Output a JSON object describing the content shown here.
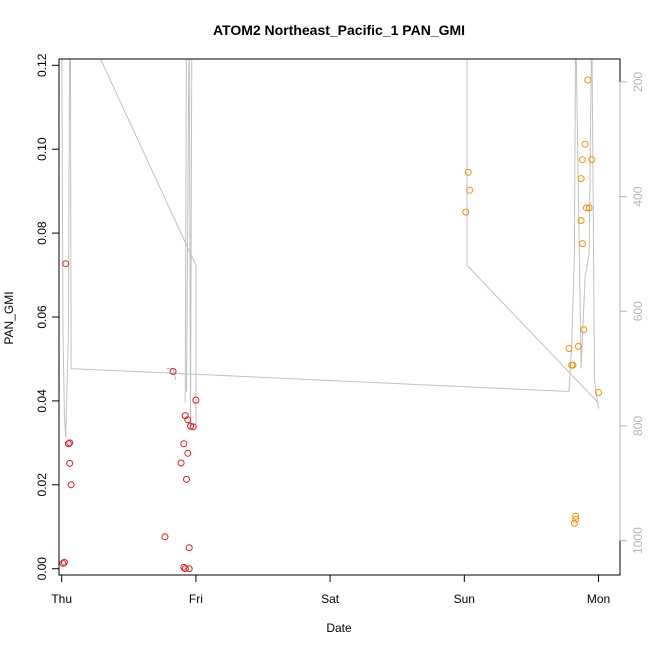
{
  "chart_data": {
    "type": "scatter",
    "title": "ATOM2 Northeast_Pacific_1 PAN_GMI",
    "xlabel": "Date",
    "ylabel": "PAN_GMI",
    "x_ticks": [
      "Thu",
      "Fri",
      "Sat",
      "Sun",
      "Mon"
    ],
    "xlim": [
      -0.02,
      4.16
    ],
    "y_ticks": [
      "0.00",
      "0.02",
      "0.04",
      "0.06",
      "0.08",
      "0.10",
      "0.12"
    ],
    "ylim": [
      -0.0015,
      0.1215
    ],
    "right_axis": {
      "ticks": [
        "200",
        "400",
        "600",
        "800",
        "1000"
      ],
      "lim": [
        160,
        1060
      ],
      "inverted": true,
      "color": "#b3b3b3"
    },
    "grid": false,
    "series": [
      {
        "color": "#e31a1c",
        "points": [
          [
            0.01,
            0.0013
          ],
          [
            0.02,
            0.0015
          ],
          [
            0.03,
            0.0727
          ],
          [
            0.05,
            0.0298
          ],
          [
            0.06,
            0.03
          ],
          [
            0.06,
            0.0251
          ],
          [
            0.07,
            0.02
          ],
          [
            0.77,
            0.0076
          ],
          [
            0.83,
            0.047
          ],
          [
            0.89,
            0.0252
          ],
          [
            0.91,
            0.0298
          ],
          [
            0.91,
            0.0003
          ],
          [
            0.92,
            0.0
          ],
          [
            0.92,
            0.0365
          ],
          [
            0.93,
            0.0213
          ],
          [
            0.94,
            0.0355
          ],
          [
            0.94,
            0.0275
          ],
          [
            0.95,
            0.005
          ],
          [
            0.95,
            0.0
          ],
          [
            0.96,
            0.034
          ],
          [
            0.98,
            0.0338
          ],
          [
            1.0,
            0.0402
          ]
        ]
      },
      {
        "color": "#ff8c00",
        "points": [
          [
            3.01,
            0.085
          ],
          [
            3.03,
            0.0945
          ],
          [
            3.04,
            0.0902
          ],
          [
            3.78,
            0.0525
          ],
          [
            3.8,
            0.0485
          ],
          [
            3.81,
            0.0485
          ],
          [
            3.82,
            0.0108
          ],
          [
            3.83,
            0.0118
          ],
          [
            3.83,
            0.0125
          ],
          [
            3.85,
            0.053
          ],
          [
            3.87,
            0.093
          ],
          [
            3.87,
            0.083
          ],
          [
            3.88,
            0.0775
          ],
          [
            3.88,
            0.0975
          ],
          [
            3.89,
            0.057
          ],
          [
            3.9,
            0.1012
          ],
          [
            3.91,
            0.086
          ],
          [
            3.92,
            0.1165
          ],
          [
            3.93,
            0.086
          ],
          [
            3.95,
            0.0975
          ],
          [
            4.0,
            0.042
          ]
        ]
      }
    ],
    "line_series": {
      "color": "#c0c0c0",
      "axis": "right",
      "points": [
        [
          0.0,
          100
        ],
        [
          0.01,
          640
        ],
        [
          0.02,
          780
        ],
        [
          0.03,
          820
        ],
        [
          0.05,
          640
        ],
        [
          0.06,
          90
        ],
        [
          0.065,
          100
        ],
        [
          0.07,
          700
        ],
        [
          3.78,
          740
        ],
        [
          3.8,
          660
        ],
        [
          3.82,
          500
        ],
        [
          3.83,
          90
        ],
        [
          3.87,
          700
        ],
        [
          3.9,
          540
        ],
        [
          3.93,
          500
        ],
        [
          3.95,
          90
        ],
        [
          3.97,
          720
        ],
        [
          4.0,
          770
        ],
        [
          0.23,
          130
        ],
        [
          1.0,
          520
        ],
        [
          1.0,
          800
        ],
        [
          0.93,
          740
        ],
        [
          0.95,
          90
        ],
        [
          0.96,
          800
        ],
        [
          0.97,
          90
        ],
        [
          0.78,
          700
        ],
        [
          0.83,
          700
        ],
        [
          0.85,
          720
        ],
        [
          0.92,
          760
        ],
        [
          0.93,
          90
        ],
        [
          3.02,
          90
        ],
        [
          3.02,
          520
        ],
        [
          4.0,
          760
        ]
      ]
    }
  }
}
